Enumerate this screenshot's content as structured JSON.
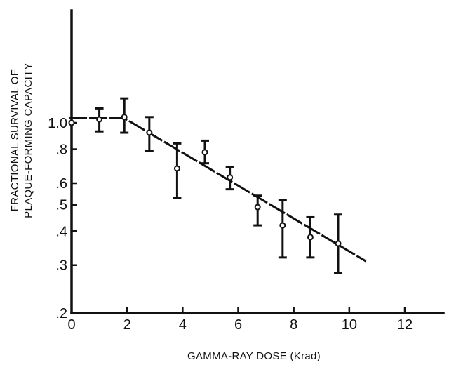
{
  "chart_data": {
    "type": "scatter",
    "xlabel": "GAMMA-RAY DOSE (Krad)",
    "ylabel": [
      "FRACTIONAL SURVIVAL OF",
      "PLAQUE-FORMING CAPACITY"
    ],
    "xlim": [
      0,
      13
    ],
    "ylim": [
      0.2,
      1.0
    ],
    "y_scale": "log",
    "x_ticks": [
      {
        "value": 0,
        "label": "0"
      },
      {
        "value": 2,
        "label": "2"
      },
      {
        "value": 4,
        "label": "4"
      },
      {
        "value": 6,
        "label": "6"
      },
      {
        "value": 8,
        "label": "8"
      },
      {
        "value": 10,
        "label": "10"
      },
      {
        "value": 12,
        "label": "12"
      }
    ],
    "y_ticks": [
      {
        "value": 0.2,
        "label": ".2"
      },
      {
        "value": 0.3,
        "label": ".3"
      },
      {
        "value": 0.4,
        "label": ".4"
      },
      {
        "value": 0.5,
        "label": ".5"
      },
      {
        "value": 0.6,
        "label": ".6"
      },
      {
        "value": 0.8,
        "label": ".8"
      },
      {
        "value": 1.0,
        "label": "1.0"
      }
    ],
    "series": [
      {
        "points": [
          {
            "x": 0.0,
            "y": 1.0,
            "low": null,
            "high": null
          },
          {
            "x": 1.0,
            "y": 1.03,
            "low": 0.93,
            "high": 1.13
          },
          {
            "x": 1.9,
            "y": 1.05,
            "low": 0.92,
            "high": 1.23
          },
          {
            "x": 2.8,
            "y": 0.92,
            "low": 0.79,
            "high": 1.05
          },
          {
            "x": 3.8,
            "y": 0.68,
            "low": 0.53,
            "high": 0.84
          },
          {
            "x": 4.8,
            "y": 0.78,
            "low": 0.71,
            "high": 0.86
          },
          {
            "x": 5.7,
            "y": 0.63,
            "low": 0.57,
            "high": 0.69
          },
          {
            "x": 6.7,
            "y": 0.49,
            "low": 0.42,
            "high": 0.54
          },
          {
            "x": 7.6,
            "y": 0.42,
            "low": 0.32,
            "high": 0.52
          },
          {
            "x": 8.6,
            "y": 0.38,
            "low": 0.32,
            "high": 0.45
          },
          {
            "x": 9.6,
            "y": 0.36,
            "low": 0.28,
            "high": 0.46
          }
        ]
      }
    ],
    "fit_line": [
      {
        "x": -0.1,
        "y": 1.04
      },
      {
        "x": 1.9,
        "y": 1.04
      },
      {
        "x": 10.6,
        "y": 0.31
      }
    ],
    "grid": false,
    "legend": "none"
  }
}
